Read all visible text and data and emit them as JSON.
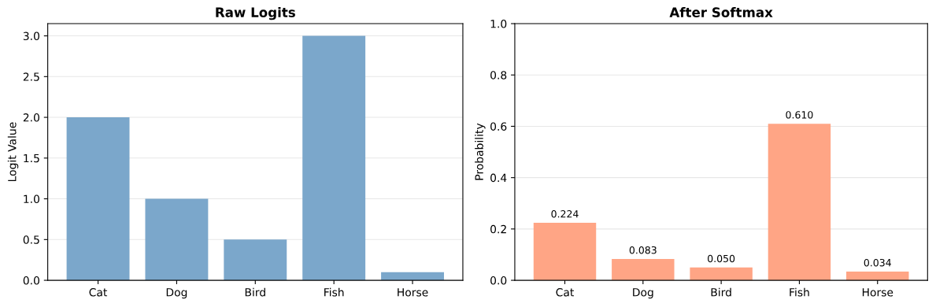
{
  "chart_data": [
    {
      "type": "bar",
      "title": "Raw Logits",
      "ylabel": "Logit Value",
      "categories": [
        "Cat",
        "Dog",
        "Bird",
        "Fish",
        "Horse"
      ],
      "values": [
        2.0,
        1.0,
        0.5,
        3.0,
        0.1
      ],
      "color": "#7ba7cb",
      "ylim": [
        0,
        3.15
      ],
      "yticks": [
        {
          "value": 0,
          "label": "0.0"
        },
        {
          "value": 0.5,
          "label": "0.5"
        },
        {
          "value": 1,
          "label": "1.0"
        },
        {
          "value": 1.5,
          "label": "1.5"
        },
        {
          "value": 2,
          "label": "2.0"
        },
        {
          "value": 2.5,
          "label": "2.5"
        },
        {
          "value": 3,
          "label": "3.0"
        }
      ],
      "grid": "y"
    },
    {
      "type": "bar",
      "title": "After Softmax",
      "ylabel": "Probability",
      "categories": [
        "Cat",
        "Dog",
        "Bird",
        "Fish",
        "Horse"
      ],
      "values": [
        0.224,
        0.083,
        0.05,
        0.61,
        0.034
      ],
      "color": "#ffa585",
      "ylim": [
        0,
        1
      ],
      "yticks": [
        {
          "value": 0,
          "label": "0.0"
        },
        {
          "value": 0.2,
          "label": "0.2"
        },
        {
          "value": 0.4,
          "label": "0.4"
        },
        {
          "value": 0.6,
          "label": "0.6"
        },
        {
          "value": 0.8,
          "label": "0.8"
        },
        {
          "value": 1,
          "label": "1.0"
        }
      ],
      "grid": "y",
      "value_labels": [
        "0.224",
        "0.083",
        "0.050",
        "0.610",
        "0.034"
      ]
    }
  ]
}
